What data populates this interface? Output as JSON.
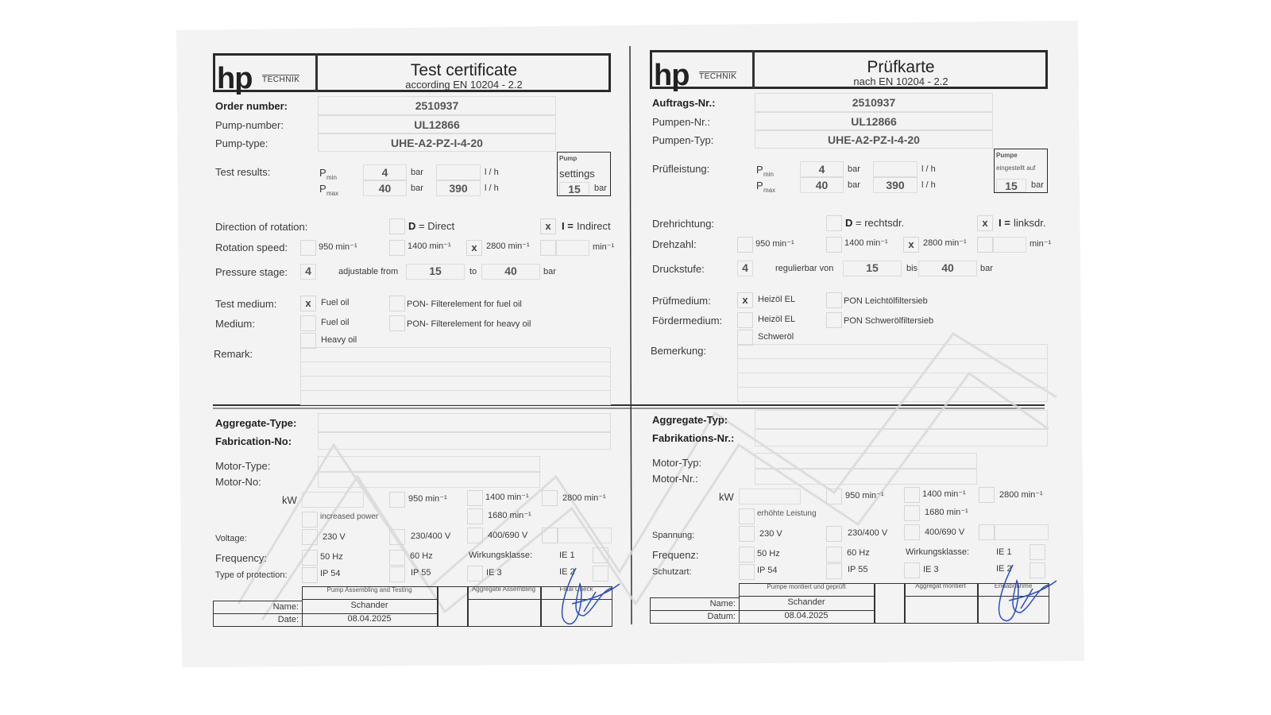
{
  "mark": "x",
  "left": {
    "header": {
      "logo_main": "hp",
      "logo_sub": "TECHNIK",
      "title": "Test certificate",
      "subtitle": "according EN 10204 - 2.2"
    },
    "fields": {
      "order_label": "Order number:",
      "order_value": "2510937",
      "pump_no_label": "Pump-number:",
      "pump_no_value": "UL12866",
      "pump_type_label": "Pump-type:",
      "pump_type_value": "UHE-A2-PZ-I-4-20"
    },
    "test": {
      "label": "Test results:",
      "p": "P",
      "min_sub": "min",
      "max_sub": "max",
      "pmin": "4",
      "pmax": "40",
      "unit_bar": "bar",
      "flow_min": "",
      "flow_max": "390",
      "unit_flow": "l / h"
    },
    "pump_box": {
      "line1": "Pump",
      "line2": "settings",
      "value": "15",
      "unit": "bar"
    },
    "rotation_dir": {
      "label": "Direction of rotation:",
      "direct_letter": "D",
      "direct_text": "= Direct",
      "indirect_letter": "I =",
      "indirect_text": "Indirect",
      "direct_checked": false,
      "indirect_checked": true
    },
    "speed": {
      "label": "Rotation speed:",
      "s950": "950 min⁻¹",
      "s1400": "1400 min⁻¹",
      "s2800": "2800 min⁻¹",
      "other_unit": "min⁻¹",
      "s950_checked": false,
      "s1400_checked": false,
      "s2800_checked": true
    },
    "pressure": {
      "label": "Pressure stage:",
      "stage": "4",
      "from_label": "adjustable from",
      "from": "15",
      "to_label": "to",
      "to": "40",
      "unit": "bar"
    },
    "medium": {
      "test_label": "Test medium:",
      "medium_label": "Medium:",
      "test_fuel": "Fuel oil",
      "fuel_oil": "Fuel oil",
      "heavy_oil": "Heavy oil",
      "pon_fuel": "PON- Filterelement for fuel oil",
      "pon_heavy": "PON- Filterelement for heavy oil",
      "test_fuel_checked": true
    },
    "remark": {
      "label": "Remark:"
    },
    "aggregate": {
      "type_label": "Aggregate-Type:",
      "fab_label": "Fabrication-No:",
      "motor_type_label": "Motor-Type:",
      "motor_no_label": "Motor-No:",
      "kw_label": "kW",
      "m950": "950 min⁻¹",
      "m1400": "1400 min⁻¹",
      "m2800": "2800 min⁻¹",
      "increased": "increased power",
      "m1680": "1680 min⁻¹",
      "voltage_label": "Voltage:",
      "v230": "230 V",
      "v230_400": "230/400 V",
      "v400_690": "400/690 V",
      "freq_label": "Frequency:",
      "f50": "50 Hz",
      "f60": "60 Hz",
      "eff_label": "Wirkungsklasse:",
      "ie1": "IE 1",
      "ie2": "IE 2",
      "ie3": "IE 3",
      "prot_label": "Type of protection:",
      "ip54": "IP 54",
      "ip55": "IP 55"
    },
    "signoff": {
      "col1": "Pump Assembling and Testing",
      "col3": "Aggregate Assembling",
      "col4": "Final Check",
      "name_label": "Name:",
      "date_label": "Date:",
      "name": "Schander",
      "date": "08.04.2025"
    }
  },
  "right": {
    "header": {
      "logo_main": "hp",
      "logo_sub": "TECHNIK",
      "title": "Prüfkarte",
      "subtitle": "nach EN 10204 - 2.2"
    },
    "fields": {
      "order_label": "Auftrags-Nr.:",
      "order_value": "2510937",
      "pump_no_label": "Pumpen-Nr.:",
      "pump_no_value": "UL12866",
      "pump_type_label": "Pumpen-Typ:",
      "pump_type_value": "UHE-A2-PZ-I-4-20"
    },
    "test": {
      "label": "Prüfleistung:",
      "p": "P",
      "min_sub": "min",
      "max_sub": "max",
      "pmin": "4",
      "pmax": "40",
      "unit_bar": "bar",
      "flow_min": "",
      "flow_max": "390",
      "unit_flow": "l / h"
    },
    "pump_box": {
      "line1": "Pumpe",
      "line2": "eingestellt auf",
      "value": "15",
      "unit": "bar"
    },
    "rotation_dir": {
      "label": "Drehrichtung:",
      "direct_letter": "D",
      "direct_text": "= rechtsdr.",
      "indirect_letter": "I =",
      "indirect_text": "linksdr.",
      "direct_checked": false,
      "indirect_checked": true
    },
    "speed": {
      "label": "Drehzahl:",
      "s950": "950 min⁻¹",
      "s1400": "1400 min⁻¹",
      "s2800": "2800 min⁻¹",
      "other_unit": "min⁻¹",
      "s950_checked": false,
      "s1400_checked": false,
      "s2800_checked": true
    },
    "pressure": {
      "label": "Druckstufe:",
      "stage": "4",
      "from_label": "regulierbar von",
      "from": "15",
      "to_label": "bis",
      "to": "40",
      "unit": "bar"
    },
    "medium": {
      "test_label": "Prüfmedium:",
      "medium_label": "Fördermedium:",
      "test_fuel": "Heizöl EL",
      "fuel_oil": "Heizöl EL",
      "heavy_oil": "Schweröl",
      "pon_fuel": "PON Leichtölfiltersieb",
      "pon_heavy": "PON Schwerölfiltersieb",
      "test_fuel_checked": true
    },
    "remark": {
      "label": "Bemerkung:"
    },
    "aggregate": {
      "type_label": "Aggregate-Typ:",
      "fab_label": "Fabrikations-Nr.:",
      "motor_type_label": "Motor-Typ:",
      "motor_no_label": "Motor-Nr.:",
      "kw_label": "kW",
      "m950": "950 min⁻¹",
      "m1400": "1400 min⁻¹",
      "m2800": "2800 min⁻¹",
      "increased": "erhöhte Leistung",
      "m1680": "1680 min⁻¹",
      "voltage_label": "Spannung:",
      "v230": "230 V",
      "v230_400": "230/400 V",
      "v400_690": "400/690 V",
      "freq_label": "Frequenz:",
      "f50": "50 Hz",
      "f60": "60 Hz",
      "eff_label": "Wirkungsklasse:",
      "ie1": "IE 1",
      "ie2": "IE 2",
      "ie3": "IE 3",
      "prot_label": "Schutzart:",
      "ip54": "IP 54",
      "ip55": "IP 55"
    },
    "signoff": {
      "col1": "Pumpe montiert und geprüft",
      "col3": "Aggregat montiert",
      "col4": "Endabnahme",
      "name_label": "Name:",
      "date_label": "Datum:",
      "name": "Schander",
      "date": "08.04.2025"
    }
  }
}
